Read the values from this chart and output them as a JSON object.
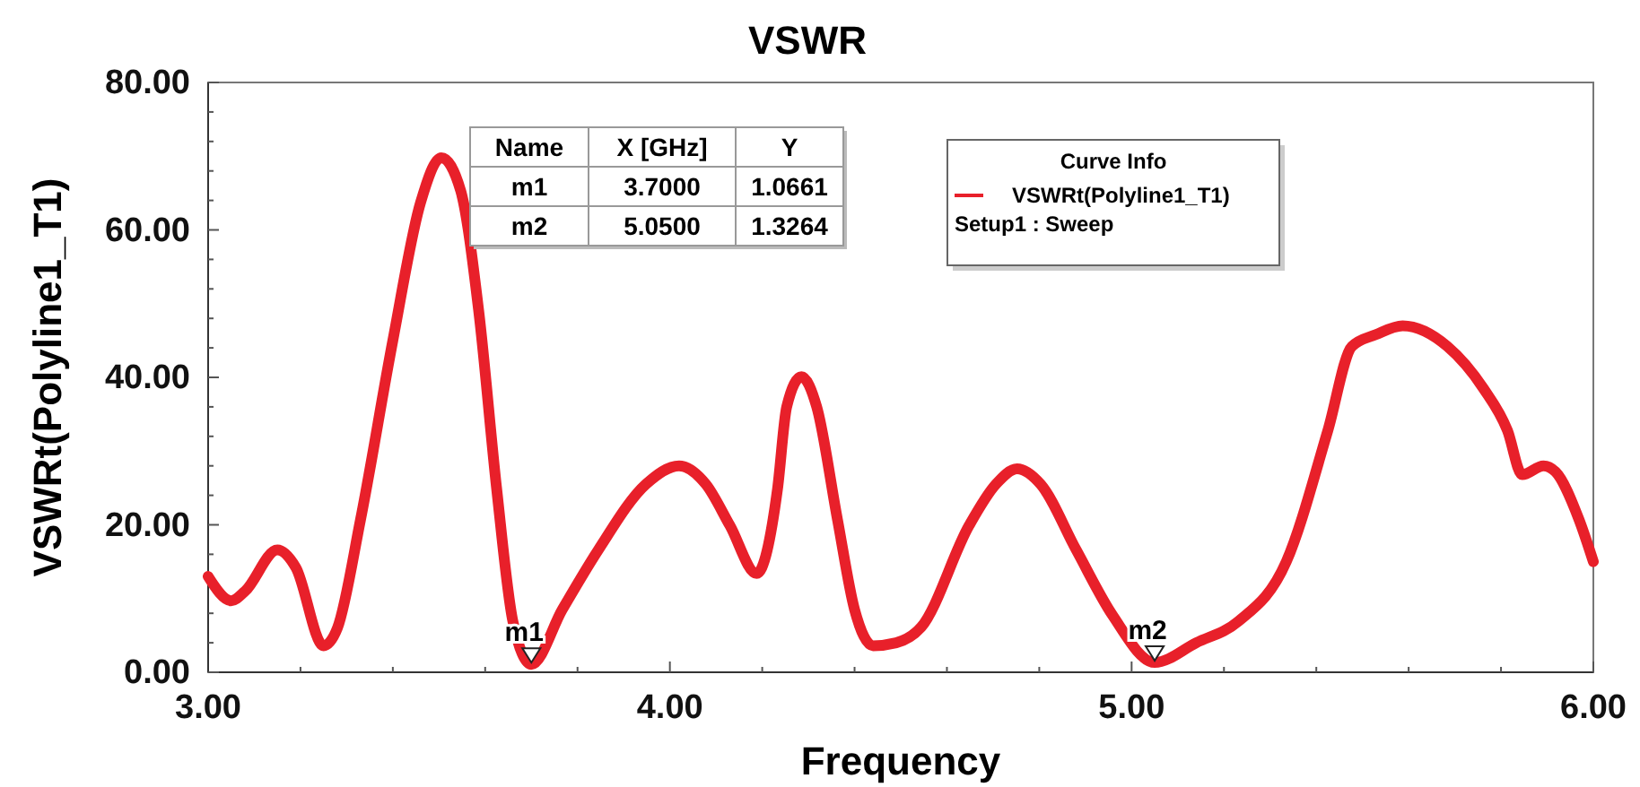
{
  "chart_data": {
    "type": "line",
    "title": "VSWR",
    "xlabel": "Frequency",
    "ylabel": "VSWRt(Polyline1_T1)",
    "legend_title": "Curve Info",
    "legend": "top right",
    "xlim": [
      3,
      6
    ],
    "xticks": [
      {
        "value": 3,
        "label": "3.00"
      },
      {
        "value": 3.2,
        "label": null
      },
      {
        "value": 3.4,
        "label": null
      },
      {
        "value": 3.6,
        "label": null
      },
      {
        "value": 3.8,
        "label": null
      },
      {
        "value": 4,
        "label": "4.00"
      },
      {
        "value": 4.2,
        "label": null
      },
      {
        "value": 4.4,
        "label": null
      },
      {
        "value": 4.6,
        "label": null
      },
      {
        "value": 4.8,
        "label": null
      },
      {
        "value": 5,
        "label": "5.00"
      },
      {
        "value": 5.2,
        "label": null
      },
      {
        "value": 5.4,
        "label": null
      },
      {
        "value": 5.6,
        "label": null
      },
      {
        "value": 5.8,
        "label": null
      },
      {
        "value": 6,
        "label": "6.00"
      }
    ],
    "ylim": [
      0,
      80
    ],
    "yticks": [
      {
        "value": 0,
        "label": "0.00"
      },
      {
        "value": 4,
        "label": null
      },
      {
        "value": 8,
        "label": null
      },
      {
        "value": 12,
        "label": null
      },
      {
        "value": 16,
        "label": null
      },
      {
        "value": 20,
        "label": "20.00"
      },
      {
        "value": 24,
        "label": null
      },
      {
        "value": 28,
        "label": null
      },
      {
        "value": 32,
        "label": null
      },
      {
        "value": 36,
        "label": null
      },
      {
        "value": 40,
        "label": "40.00"
      },
      {
        "value": 44,
        "label": null
      },
      {
        "value": 48,
        "label": null
      },
      {
        "value": 52,
        "label": null
      },
      {
        "value": 56,
        "label": null
      },
      {
        "value": 60,
        "label": "60.00"
      },
      {
        "value": 64,
        "label": null
      },
      {
        "value": 68,
        "label": null
      },
      {
        "value": 72,
        "label": null
      },
      {
        "value": 76,
        "label": null
      },
      {
        "value": 80,
        "label": "80.00"
      }
    ],
    "grid": false,
    "marker": "none",
    "line_style": "solid",
    "series": [
      {
        "name": "VSWRt(Polyline1_T1)",
        "color": "#e8202a",
        "x": [
          3,
          3.05,
          3.08,
          3.15,
          3.19,
          3.25,
          3.28,
          3.33,
          3.4,
          3.46,
          3.505,
          3.547,
          3.586,
          3.625,
          3.66,
          3.7,
          3.767,
          3.845,
          3.948,
          4.02,
          4.078,
          4.13,
          4.188,
          4.233,
          4.253,
          4.285,
          4.318,
          4.363,
          4.4,
          4.44,
          4.49,
          4.544,
          4.648,
          4.706,
          4.752,
          4.803,
          4.88,
          4.959,
          5.05,
          5.14,
          5.231,
          5.335,
          5.425,
          5.477,
          5.529,
          5.587,
          5.684,
          5.762,
          5.814,
          5.846,
          5.892,
          5.918,
          5.969,
          6
        ],
        "values": [
          13,
          9.7,
          11,
          16.6,
          14.2,
          3.6,
          6,
          20.7,
          45,
          63.7,
          69.8,
          65.3,
          49,
          24.8,
          6.9,
          1.0661,
          8.5,
          16.6,
          25.5,
          28,
          25.5,
          19.9,
          13.4,
          24.8,
          36,
          40.1,
          36,
          20.7,
          8.5,
          3.6,
          4,
          6.1,
          19.9,
          25.5,
          27.6,
          25.5,
          16.6,
          7.7,
          1.3264,
          4,
          6.9,
          15,
          32.8,
          44.2,
          45.8,
          47,
          44.2,
          38.5,
          32.8,
          26.8,
          28,
          27.2,
          20.7,
          15
        ]
      }
    ],
    "annotations": [
      {
        "text": "m1",
        "x": 3.7,
        "y": 1.0661
      },
      {
        "text": "m2",
        "x": 5.05,
        "y": 1.3264
      },
      "Setup1 : Sweep",
      "Name",
      "X [GHz]",
      "Y",
      "3.7000",
      "1.0661",
      "5.0500",
      "1.3264"
    ]
  }
}
